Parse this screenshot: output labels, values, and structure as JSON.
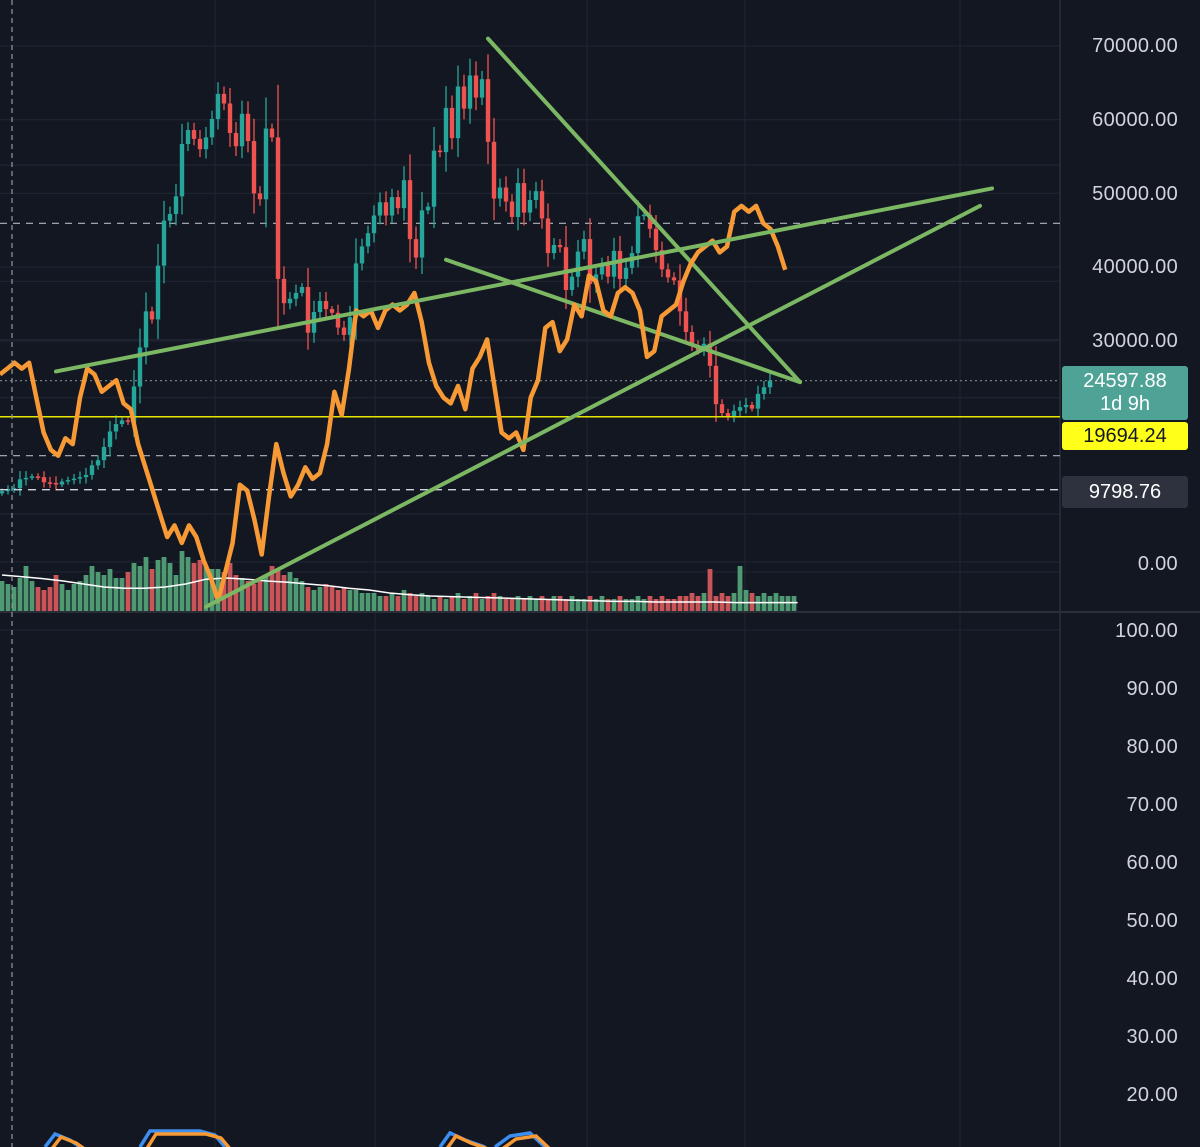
{
  "colors": {
    "background": "#131722",
    "grid": "#1f2330",
    "candle_up": "#26a69a",
    "candle_down": "#ef5350",
    "volume_up": "#4f9a72",
    "volume_down": "#c95558",
    "volume_ma": "#ffffff",
    "trendline": "#7cb763",
    "rsi_line": "#f79a35",
    "rsi_band": "#2a1f45",
    "support_line": "#e6e600",
    "current_price_bg": "#4ea396",
    "support_price_bg": "#ffff1a",
    "mark_price_bg": "#2e323e",
    "axis_text": "#d1d4dc",
    "stoch_k": "#3d8ef0",
    "stoch_d": "#f79a35"
  },
  "price_axis": {
    "labels": [
      "70000.00",
      "60000.00",
      "50000.00",
      "40000.00",
      "30000.00",
      "0.00"
    ]
  },
  "price_tags": {
    "current_price": "24597.88",
    "countdown": "1d 9h",
    "support_price": "19694.24",
    "mark_price": "9798.76"
  },
  "rsi_axis": {
    "labels": [
      "100.00",
      "90.00",
      "80.00",
      "70.00",
      "60.00",
      "50.00",
      "40.00",
      "30.00",
      "20.00"
    ]
  },
  "chart_data": [
    {
      "type": "candlestick",
      "timeframe": "1W",
      "ylim": [
        -7000,
        76000
      ],
      "closes": [
        9600,
        9900,
        10000,
        11200,
        11400,
        11600,
        11500,
        10800,
        10700,
        10500,
        10900,
        11100,
        11300,
        11500,
        11800,
        13100,
        13800,
        15600,
        17700,
        18700,
        19200,
        19000,
        23800,
        29100,
        34000,
        32900,
        40200,
        46300,
        47200,
        49600,
        56700,
        58600,
        57400,
        56000,
        57600,
        60100,
        63500,
        62200,
        58200,
        56400,
        60800,
        57100,
        50000,
        49200,
        58800,
        57600,
        38400,
        35100,
        35700,
        36500,
        37300,
        31100,
        33900,
        35400,
        34300,
        33800,
        31800,
        30800,
        33200,
        40500,
        42800,
        44600,
        47000,
        48800,
        47000,
        49500,
        48000,
        51800,
        43800,
        41300,
        47700,
        48200,
        55800,
        55600,
        61600,
        57500,
        64500,
        61500,
        66000,
        63000,
        65500,
        57000,
        49300,
        50800,
        48900,
        46800,
        51400,
        47400,
        49100,
        50300,
        46600,
        41900,
        43000,
        42700,
        36900,
        38700,
        42100,
        43800,
        37700,
        39000,
        40500,
        38700,
        42200,
        38400,
        39900,
        41900,
        46900,
        47100,
        45200,
        42300,
        39700,
        38600,
        38200,
        34000,
        31200,
        29400,
        28700,
        29600,
        26600,
        21400,
        20200,
        19700,
        20500,
        21000,
        21300,
        20800,
        22800,
        23700,
        24597.88
      ],
      "support_level": 19694.24,
      "price_tags": [
        24597.88,
        19694.24,
        9798.76
      ],
      "trendlines": [
        {
          "from": {
            "index": 81,
            "price": 71000
          },
          "to": {
            "index": 133,
            "price": 24400
          }
        },
        {
          "from": {
            "index": 74,
            "price": 41000
          },
          "to": {
            "index": 133,
            "price": 24400
          }
        }
      ]
    },
    {
      "type": "bar",
      "volume_relative": [
        0.5,
        0.45,
        0.4,
        0.55,
        0.75,
        0.5,
        0.4,
        0.35,
        0.4,
        0.6,
        0.45,
        0.35,
        0.45,
        0.5,
        0.6,
        0.75,
        0.65,
        0.6,
        0.7,
        0.55,
        0.55,
        0.65,
        0.8,
        0.75,
        0.9,
        0.7,
        0.85,
        0.9,
        0.8,
        0.6,
        1.0,
        0.9,
        0.8,
        0.85,
        0.75,
        0.7,
        0.7,
        0.65,
        0.8,
        0.6,
        0.55,
        0.5,
        0.45,
        0.55,
        0.6,
        0.75,
        0.7,
        0.6,
        0.65,
        0.55,
        0.5,
        0.4,
        0.35,
        0.4,
        0.45,
        0.4,
        0.35,
        0.4,
        0.35,
        0.35,
        0.3,
        0.3,
        0.3,
        0.25,
        0.25,
        0.3,
        0.25,
        0.35,
        0.3,
        0.25,
        0.3,
        0.25,
        0.2,
        0.25,
        0.2,
        0.25,
        0.3,
        0.2,
        0.25,
        0.3,
        0.2,
        0.25,
        0.3,
        0.25,
        0.2,
        0.2,
        0.25,
        0.2,
        0.25,
        0.2,
        0.25,
        0.2,
        0.25,
        0.25,
        0.2,
        0.25,
        0.2,
        0.2,
        0.25,
        0.2,
        0.25,
        0.2,
        0.2,
        0.25,
        0.2,
        0.2,
        0.25,
        0.2,
        0.25,
        0.2,
        0.25,
        0.2,
        0.2,
        0.25,
        0.25,
        0.3,
        0.25,
        0.3,
        0.7,
        0.25,
        0.3,
        0.25,
        0.3,
        0.75,
        0.35,
        0.3,
        0.25,
        0.3,
        0.25,
        0.3,
        0.25,
        0.25,
        0.25
      ],
      "volume_ma_relative": [
        0.6,
        0.57,
        0.54,
        0.5,
        0.45,
        0.4,
        0.38,
        0.38,
        0.4,
        0.45,
        0.53,
        0.55,
        0.53,
        0.5,
        0.48,
        0.45,
        0.42,
        0.38,
        0.35,
        0.3,
        0.27,
        0.25,
        0.24,
        0.23,
        0.22,
        0.21,
        0.2,
        0.19,
        0.18,
        0.17,
        0.16,
        0.16,
        0.15,
        0.15,
        0.15,
        0.15,
        0.14,
        0.14,
        0.14,
        0.14
      ],
      "volume_ma_index_step": 3.4
    },
    {
      "type": "line",
      "indicator": "RSI",
      "ylim": [
        20,
        100
      ],
      "band": [
        30,
        70
      ],
      "values": [
        56,
        55,
        54,
        55,
        54,
        60,
        66,
        69,
        70,
        67,
        68,
        60,
        55,
        56,
        59,
        58,
        57,
        61,
        62,
        68,
        72,
        76,
        80,
        84,
        82,
        85,
        82,
        84,
        88,
        91,
        95,
        90,
        85,
        75,
        76,
        81,
        87,
        77,
        68,
        73,
        77,
        75,
        72,
        74,
        73,
        68,
        59,
        63,
        55,
        45,
        46,
        45,
        48,
        45,
        44,
        45,
        44,
        42,
        47,
        54,
        58,
        60,
        61,
        58,
        62,
        55,
        53,
        50,
        58,
        66,
        67,
        66,
        69,
        60,
        57,
        48,
        47,
        52,
        50,
        44,
        46,
        39,
        40,
        45,
        46,
        42,
        41,
        42,
        45,
        53,
        52,
        46,
        45,
        44,
        40,
        37,
        35,
        34,
        33,
        35,
        34,
        28,
        27,
        28,
        27,
        30,
        31,
        34,
        38
      ],
      "trendlines": [
        {
          "from": {
            "index": 34,
            "value": 96
          },
          "to": {
            "index": 133,
            "value": 27
          }
        },
        {
          "from": {
            "index": 8,
            "value": 55.5
          },
          "to": {
            "index": 135,
            "value": 24
          }
        }
      ]
    }
  ]
}
